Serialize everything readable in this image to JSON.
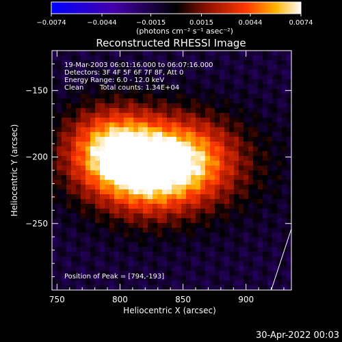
{
  "chart_data": {
    "type": "heatmap",
    "title": "Reconstructed RHESSI Image",
    "xlabel": "Heliocentric X (arcsec)",
    "ylabel": "Heliocentric Y (arcsec)",
    "xlim": [
      746,
      936
    ],
    "ylim": [
      -300,
      -120
    ],
    "x_ticks": [
      750,
      800,
      850,
      900
    ],
    "y_ticks": [
      -150,
      -200,
      -250
    ],
    "colorbar": {
      "range": [
        -0.0074,
        0.0074
      ],
      "tick_labels": [
        "-0.0074",
        "-0.0044",
        "-0.0015",
        "0.0015",
        "0.0044",
        "0.0074"
      ],
      "unit_label": "(photons cm⁻² s⁻¹ asec⁻²)"
    },
    "annotations": {
      "time_range": "19-Mar-2003 06:01:16.000 to 06:07:16.000",
      "detectors": "Detectors: 3F 4F 5F 6F 7F 8F, Att 0",
      "energy_range": "Energy Range: 6.0 - 12.0 keV",
      "algorithm": "Clean",
      "total_counts": "Total counts: 1.34E+04",
      "peak": "Position of Peak = [794,-193]"
    },
    "peak": {
      "x": 794,
      "y": -193
    },
    "sources": [
      {
        "x": 794,
        "y": -193,
        "peak": 0.0074
      },
      {
        "x": 852,
        "y": -200,
        "peak": 0.005
      },
      {
        "x": 820,
        "y": -215,
        "peak": 0.0042
      }
    ],
    "limb_line": {
      "x": [
        936,
        920
      ],
      "y": [
        -254,
        -300
      ]
    },
    "footer_date": "30-Apr-2022 00:03"
  }
}
